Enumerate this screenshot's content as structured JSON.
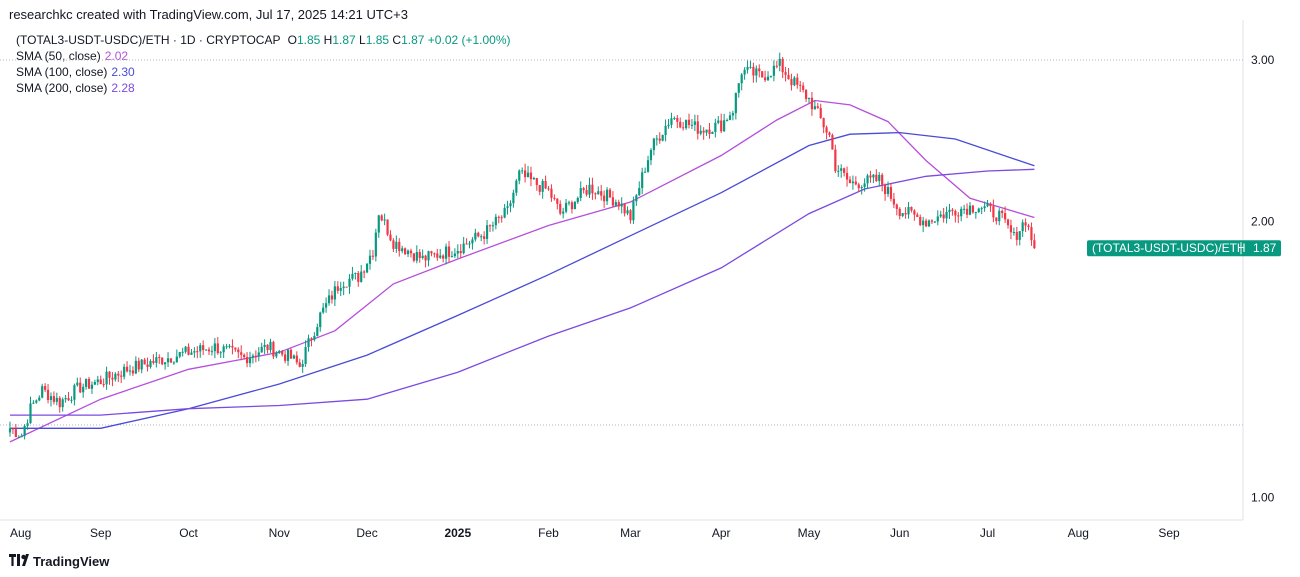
{
  "header": {
    "attribution": "researchkc created with TradingView.com, Jul 17, 2025 14:21 UTC+3"
  },
  "legend": {
    "symbol": "(TOTAL3-USDT-USDC)/ETH · 1D · CRYPTOCAP",
    "o_label": "O",
    "o": "1.85",
    "h_label": "H",
    "h": "1.87",
    "l_label": "L",
    "l": "1.85",
    "c_label": "C",
    "c": "1.87",
    "change": "+0.02 (+1.00%)",
    "sma": [
      {
        "label": "SMA (50, close)",
        "value": "2.02",
        "color": "#b64fdb"
      },
      {
        "label": "SMA (100, close)",
        "value": "2.30",
        "color": "#4a4ad8"
      },
      {
        "label": "SMA (200, close)",
        "value": "2.28",
        "color": "#7b4ae0"
      }
    ]
  },
  "price_tag": {
    "label": "(TOTAL3-USDT-USDC)/ETH",
    "value": "1.87"
  },
  "branding": {
    "name": "TradingView"
  },
  "colors": {
    "up": "#089981",
    "down": "#f23645",
    "tag": "#089981"
  },
  "chart_data": {
    "type": "candlestick",
    "scale": "log",
    "ylim": [
      0.95,
      3.3
    ],
    "y_ticks": [
      "3.00",
      "2.00",
      "1.00"
    ],
    "x_ticks": [
      "Aug",
      "Sep",
      "Oct",
      "Nov",
      "Dec",
      "2025",
      "Feb",
      "Mar",
      "Apr",
      "May",
      "Jun",
      "Jul",
      "Aug",
      "Sep"
    ],
    "x_tick_dates": [
      "2024-08-01",
      "2024-09-01",
      "2024-10-01",
      "2024-11-01",
      "2024-12-01",
      "2025-01-01",
      "2025-02-01",
      "2025-03-01",
      "2025-04-01",
      "2025-05-01",
      "2025-06-01",
      "2025-07-01",
      "2025-08-01",
      "2025-09-01"
    ],
    "close_path": [
      {
        "date": "2024-08-01",
        "close": 1.19
      },
      {
        "date": "2024-08-05",
        "close": 1.17
      },
      {
        "date": "2024-08-08",
        "close": 1.25
      },
      {
        "date": "2024-08-12",
        "close": 1.31
      },
      {
        "date": "2024-08-18",
        "close": 1.27
      },
      {
        "date": "2024-08-25",
        "close": 1.32
      },
      {
        "date": "2024-09-01",
        "close": 1.34
      },
      {
        "date": "2024-09-10",
        "close": 1.38
      },
      {
        "date": "2024-09-20",
        "close": 1.41
      },
      {
        "date": "2024-10-01",
        "close": 1.44
      },
      {
        "date": "2024-10-10",
        "close": 1.46
      },
      {
        "date": "2024-10-20",
        "close": 1.42
      },
      {
        "date": "2024-10-28",
        "close": 1.46
      },
      {
        "date": "2024-11-05",
        "close": 1.42
      },
      {
        "date": "2024-11-08",
        "close": 1.39
      },
      {
        "date": "2024-11-15",
        "close": 1.58
      },
      {
        "date": "2024-11-22",
        "close": 1.72
      },
      {
        "date": "2024-11-28",
        "close": 1.74
      },
      {
        "date": "2024-12-03",
        "close": 1.86
      },
      {
        "date": "2024-12-05",
        "close": 2.05
      },
      {
        "date": "2024-12-10",
        "close": 1.9
      },
      {
        "date": "2024-12-20",
        "close": 1.82
      },
      {
        "date": "2025-01-01",
        "close": 1.87
      },
      {
        "date": "2025-01-10",
        "close": 1.94
      },
      {
        "date": "2025-01-18",
        "close": 2.05
      },
      {
        "date": "2025-01-22",
        "close": 2.25
      },
      {
        "date": "2025-02-01",
        "close": 2.16
      },
      {
        "date": "2025-02-05",
        "close": 2.04
      },
      {
        "date": "2025-02-15",
        "close": 2.18
      },
      {
        "date": "2025-02-25",
        "close": 2.1
      },
      {
        "date": "2025-03-01",
        "close": 2.02
      },
      {
        "date": "2025-03-08",
        "close": 2.4
      },
      {
        "date": "2025-03-15",
        "close": 2.6
      },
      {
        "date": "2025-03-25",
        "close": 2.52
      },
      {
        "date": "2025-04-01",
        "close": 2.55
      },
      {
        "date": "2025-04-05",
        "close": 2.65
      },
      {
        "date": "2025-04-08",
        "close": 2.92
      },
      {
        "date": "2025-04-15",
        "close": 2.88
      },
      {
        "date": "2025-04-21",
        "close": 2.96
      },
      {
        "date": "2025-04-25",
        "close": 2.85
      },
      {
        "date": "2025-05-01",
        "close": 2.72
      },
      {
        "date": "2025-05-08",
        "close": 2.48
      },
      {
        "date": "2025-05-10",
        "close": 2.3
      },
      {
        "date": "2025-05-15",
        "close": 2.2
      },
      {
        "date": "2025-05-25",
        "close": 2.22
      },
      {
        "date": "2025-06-01",
        "close": 2.06
      },
      {
        "date": "2025-06-10",
        "close": 2.0
      },
      {
        "date": "2025-06-20",
        "close": 2.06
      },
      {
        "date": "2025-06-28",
        "close": 2.08
      },
      {
        "date": "2025-07-05",
        "close": 2.03
      },
      {
        "date": "2025-07-10",
        "close": 1.92
      },
      {
        "date": "2025-07-14",
        "close": 2.01
      },
      {
        "date": "2025-07-17",
        "close": 1.87
      }
    ],
    "series": [
      {
        "name": "SMA (50, close)",
        "color": "#b64fdb",
        "points": [
          {
            "date": "2024-08-01",
            "v": 1.15
          },
          {
            "date": "2024-09-01",
            "v": 1.28
          },
          {
            "date": "2024-10-01",
            "v": 1.38
          },
          {
            "date": "2024-11-01",
            "v": 1.44
          },
          {
            "date": "2024-11-20",
            "v": 1.52
          },
          {
            "date": "2024-12-10",
            "v": 1.71
          },
          {
            "date": "2025-01-01",
            "v": 1.82
          },
          {
            "date": "2025-02-01",
            "v": 1.98
          },
          {
            "date": "2025-03-01",
            "v": 2.1
          },
          {
            "date": "2025-04-01",
            "v": 2.36
          },
          {
            "date": "2025-04-20",
            "v": 2.58
          },
          {
            "date": "2025-05-03",
            "v": 2.71
          },
          {
            "date": "2025-05-15",
            "v": 2.68
          },
          {
            "date": "2025-05-28",
            "v": 2.57
          },
          {
            "date": "2025-06-10",
            "v": 2.33
          },
          {
            "date": "2025-06-25",
            "v": 2.12
          },
          {
            "date": "2025-07-17",
            "v": 2.02
          }
        ]
      },
      {
        "name": "SMA (100, close)",
        "color": "#4a4ad8",
        "points": [
          {
            "date": "2024-08-01",
            "v": 1.19
          },
          {
            "date": "2024-09-01",
            "v": 1.19
          },
          {
            "date": "2024-10-01",
            "v": 1.25
          },
          {
            "date": "2024-11-01",
            "v": 1.33
          },
          {
            "date": "2024-12-01",
            "v": 1.43
          },
          {
            "date": "2025-01-01",
            "v": 1.58
          },
          {
            "date": "2025-02-01",
            "v": 1.75
          },
          {
            "date": "2025-03-01",
            "v": 1.93
          },
          {
            "date": "2025-04-01",
            "v": 2.15
          },
          {
            "date": "2025-05-01",
            "v": 2.42
          },
          {
            "date": "2025-05-15",
            "v": 2.49
          },
          {
            "date": "2025-06-01",
            "v": 2.5
          },
          {
            "date": "2025-06-20",
            "v": 2.46
          },
          {
            "date": "2025-07-17",
            "v": 2.3
          }
        ]
      },
      {
        "name": "SMA (200, close)",
        "color": "#7b4ae0",
        "points": [
          {
            "date": "2024-08-01",
            "v": 1.23
          },
          {
            "date": "2024-09-01",
            "v": 1.23
          },
          {
            "date": "2024-10-01",
            "v": 1.25
          },
          {
            "date": "2024-11-01",
            "v": 1.26
          },
          {
            "date": "2024-12-01",
            "v": 1.28
          },
          {
            "date": "2025-01-01",
            "v": 1.37
          },
          {
            "date": "2025-02-01",
            "v": 1.5
          },
          {
            "date": "2025-03-01",
            "v": 1.61
          },
          {
            "date": "2025-04-01",
            "v": 1.78
          },
          {
            "date": "2025-05-01",
            "v": 2.04
          },
          {
            "date": "2025-05-20",
            "v": 2.17
          },
          {
            "date": "2025-06-10",
            "v": 2.24
          },
          {
            "date": "2025-07-01",
            "v": 2.27
          },
          {
            "date": "2025-07-17",
            "v": 2.28
          }
        ]
      }
    ],
    "reference_lines": [
      3.0,
      1.2
    ],
    "last_price": 1.87
  }
}
